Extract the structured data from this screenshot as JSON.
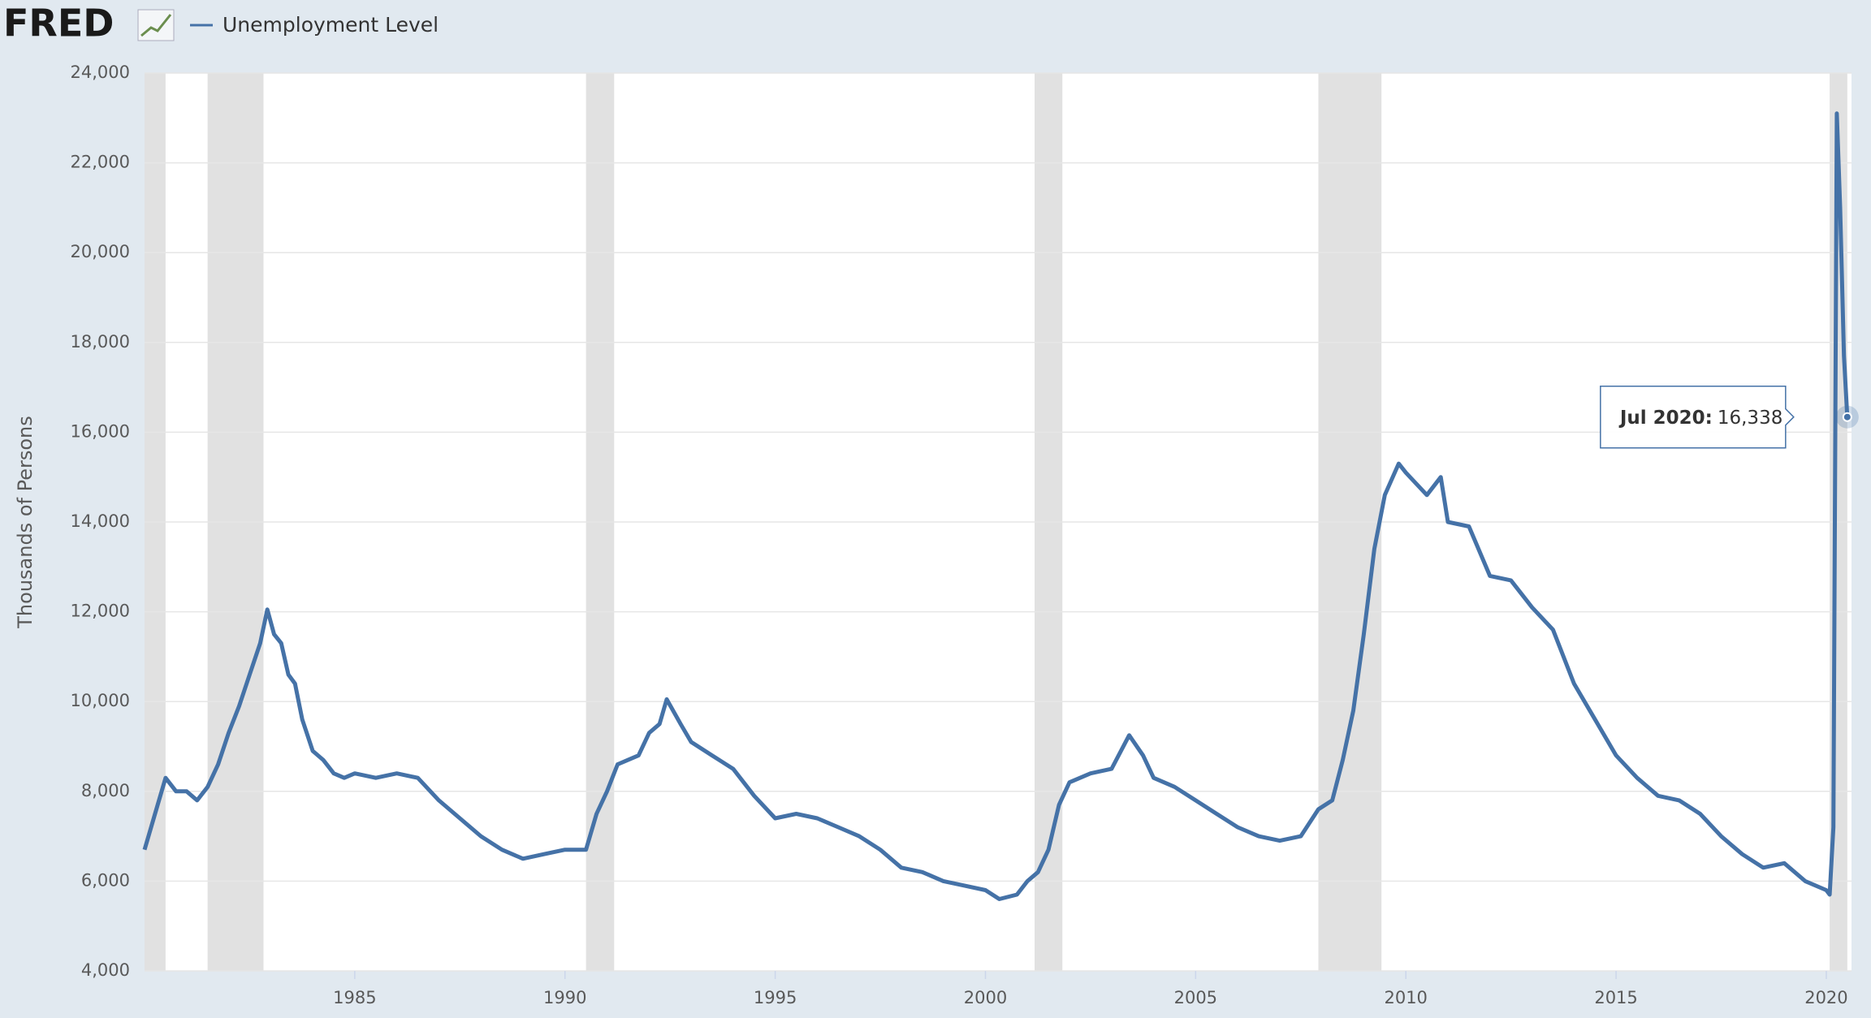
{
  "logo": "FRED",
  "chart_data": {
    "type": "line",
    "y_label": "Thousands of Persons",
    "series": [
      {
        "name": "Unemployment Level",
        "color": "#4572a7",
        "x": [
          1980.0,
          1980.25,
          1980.5,
          1980.75,
          1981.0,
          1981.25,
          1981.5,
          1981.75,
          1982.0,
          1982.25,
          1982.5,
          1982.75,
          1982.92,
          1983.08,
          1983.25,
          1983.42,
          1983.58,
          1983.75,
          1984.0,
          1984.25,
          1984.5,
          1984.75,
          1985.0,
          1985.5,
          1986.0,
          1986.5,
          1987.0,
          1987.5,
          1988.0,
          1988.5,
          1989.0,
          1989.5,
          1990.0,
          1990.5,
          1990.75,
          1991.0,
          1991.25,
          1991.5,
          1991.75,
          1992.0,
          1992.25,
          1992.42,
          1992.75,
          1993.0,
          1993.5,
          1994.0,
          1994.5,
          1995.0,
          1995.5,
          1996.0,
          1996.5,
          1997.0,
          1997.5,
          1998.0,
          1998.5,
          1999.0,
          1999.5,
          2000.0,
          2000.33,
          2000.75,
          2001.0,
          2001.25,
          2001.5,
          2001.75,
          2002.0,
          2002.5,
          2003.0,
          2003.42,
          2003.75,
          2004.0,
          2004.5,
          2005.0,
          2005.5,
          2006.0,
          2006.5,
          2007.0,
          2007.5,
          2007.92,
          2008.25,
          2008.5,
          2008.75,
          2009.0,
          2009.25,
          2009.5,
          2009.83,
          2010.0,
          2010.5,
          2010.83,
          2011.0,
          2011.5,
          2012.0,
          2012.5,
          2013.0,
          2013.5,
          2014.0,
          2014.5,
          2015.0,
          2015.5,
          2016.0,
          2016.5,
          2017.0,
          2017.5,
          2018.0,
          2018.5,
          2019.0,
          2019.5,
          2020.0,
          2020.08,
          2020.17,
          2020.25,
          2020.33,
          2020.42,
          2020.5
        ],
        "values": [
          6700,
          7500,
          8300,
          8000,
          8000,
          7800,
          8100,
          8600,
          9300,
          9900,
          10600,
          11300,
          12050,
          11500,
          11300,
          10600,
          10400,
          9600,
          8900,
          8700,
          8400,
          8300,
          8400,
          8300,
          8400,
          8300,
          7800,
          7400,
          7000,
          6700,
          6500,
          6600,
          6700,
          6700,
          7500,
          8000,
          8600,
          8700,
          8800,
          9300,
          9500,
          10050,
          9500,
          9100,
          8800,
          8500,
          7900,
          7400,
          7500,
          7400,
          7200,
          7000,
          6700,
          6300,
          6200,
          6000,
          5900,
          5800,
          5600,
          5700,
          6000,
          6200,
          6700,
          7700,
          8200,
          8400,
          8500,
          9250,
          8800,
          8300,
          8100,
          7800,
          7500,
          7200,
          7000,
          6900,
          7000,
          7600,
          7800,
          8700,
          9800,
          11500,
          13400,
          14600,
          15300,
          15100,
          14600,
          15000,
          14000,
          13900,
          12800,
          12700,
          12100,
          11600,
          10400,
          9600,
          8800,
          8300,
          7900,
          7800,
          7500,
          7000,
          6600,
          6300,
          6400,
          6000,
          5800,
          5700,
          7200,
          23100,
          21000,
          17700,
          16338
        ]
      }
    ],
    "recessions": [
      {
        "start": 1980.0,
        "end": 1980.5
      },
      {
        "start": 1981.5,
        "end": 1982.83
      },
      {
        "start": 1990.5,
        "end": 1991.17
      },
      {
        "start": 2001.17,
        "end": 2001.83
      },
      {
        "start": 2007.92,
        "end": 2009.42
      },
      {
        "start": 2020.08,
        "end": 2020.5
      }
    ],
    "recession_color": "#e1e1e1",
    "xlim": [
      1980.0,
      2020.6
    ],
    "xticks": [
      1985,
      1990,
      1995,
      2000,
      2005,
      2010,
      2015,
      2020
    ],
    "ylim": [
      4000,
      24000
    ],
    "yticks": [
      {
        "value": 4000,
        "label": "4,000"
      },
      {
        "value": 6000,
        "label": "6,000"
      },
      {
        "value": 8000,
        "label": "8,000"
      },
      {
        "value": 10000,
        "label": "10,000"
      },
      {
        "value": 12000,
        "label": "12,000"
      },
      {
        "value": 14000,
        "label": "14,000"
      },
      {
        "value": 16000,
        "label": "16,000"
      },
      {
        "value": 18000,
        "label": "18,000"
      },
      {
        "value": 20000,
        "label": "20,000"
      },
      {
        "value": 22000,
        "label": "22,000"
      },
      {
        "value": 24000,
        "label": "24,000"
      }
    ],
    "grid": true,
    "tooltip": {
      "label": "Jul 2020:",
      "x": 2020.5,
      "value": 16338,
      "value_label": "16,338"
    }
  }
}
